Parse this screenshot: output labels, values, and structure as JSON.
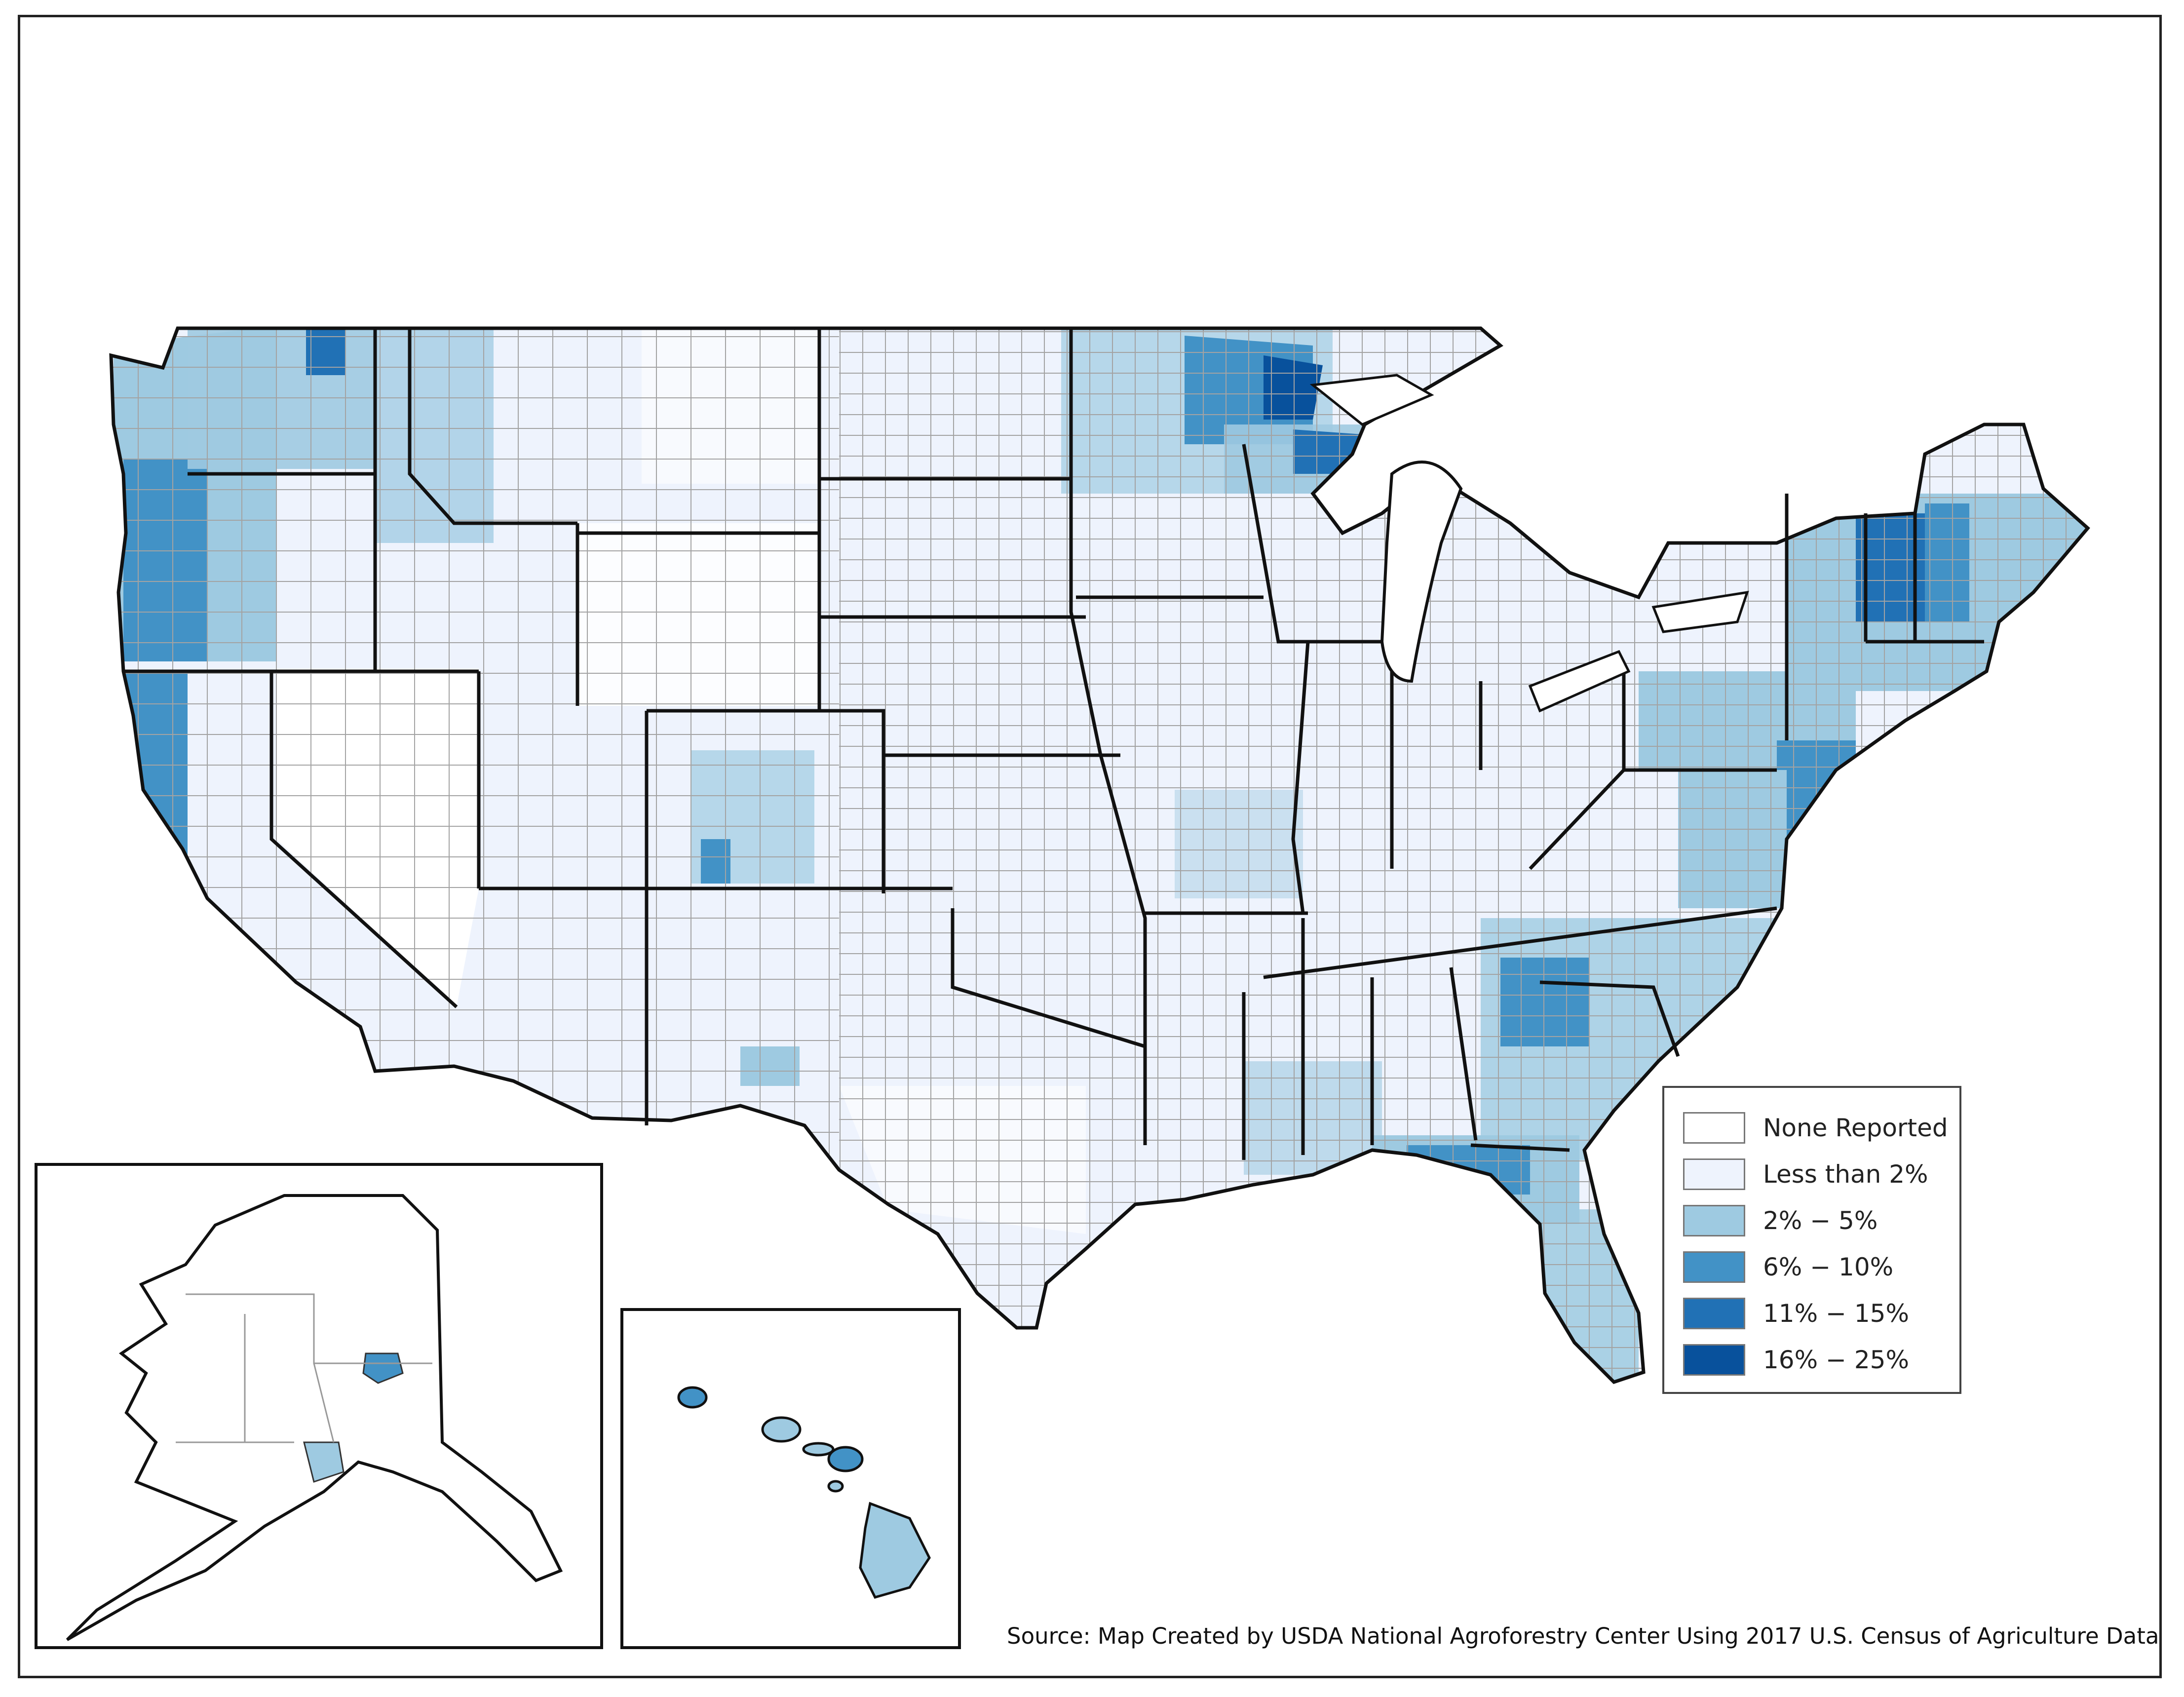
{
  "map": {
    "colors": {
      "none": "#ffffff",
      "lt2": "#eef3fd",
      "c2to5": "#9ecae1",
      "c6to10": "#4292c6",
      "c11to15": "#2171b5",
      "c16to25": "#08519c",
      "border": "#111111",
      "county": "#9a9a9a"
    },
    "insets": [
      "Alaska",
      "Hawaii"
    ]
  },
  "legend": {
    "items": [
      {
        "label": "None Reported",
        "color": "#ffffff"
      },
      {
        "label": "Less than 2%",
        "color": "#eef3fd"
      },
      {
        "label": "2% − 5%",
        "color": "#9ecae1"
      },
      {
        "label": "6% − 10%",
        "color": "#4292c6"
      },
      {
        "label": "11% − 15%",
        "color": "#2171b5"
      },
      {
        "label": "16% − 25%",
        "color": "#08519c"
      }
    ]
  },
  "source": "Source: Map Created by USDA National Agroforestry Center Using 2017 U.S. Census of Agriculture Data"
}
